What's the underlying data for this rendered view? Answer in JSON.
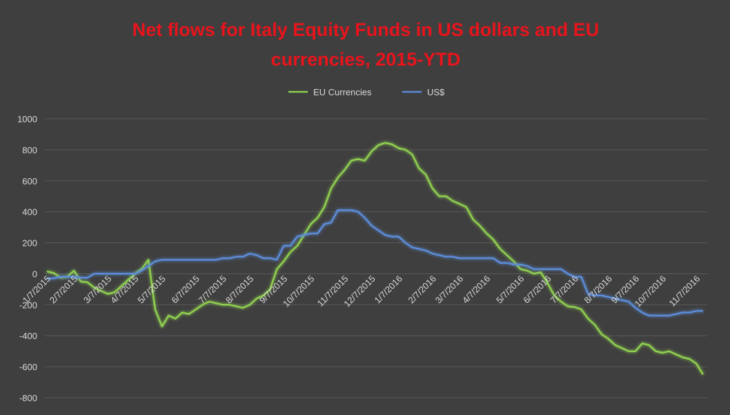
{
  "chart_data": {
    "type": "line",
    "title": "Net flows for Italy Equity Funds in US dollars and EU currencies, 2015-YTD",
    "categories": [
      "1/7/2015",
      null,
      null,
      null,
      "2/7/2015",
      null,
      null,
      null,
      null,
      "3/7/2015",
      null,
      null,
      null,
      "4/7/2015",
      null,
      null,
      null,
      "5/7/2015",
      null,
      null,
      null,
      null,
      "6/7/2015",
      null,
      null,
      null,
      "7/7/2015",
      null,
      null,
      null,
      "8/7/2015",
      null,
      null,
      null,
      null,
      "9/7/2015",
      null,
      null,
      null,
      "10/7/2015",
      null,
      null,
      null,
      null,
      "11/7/2015",
      null,
      null,
      null,
      "12/7/2015",
      null,
      null,
      null,
      "1/7/2016",
      null,
      null,
      null,
      null,
      "2/7/2016",
      null,
      null,
      null,
      "3/7/2016",
      null,
      null,
      null,
      "4/7/2016",
      null,
      null,
      null,
      null,
      "5/7/2016",
      null,
      null,
      null,
      "6/7/2016",
      null,
      null,
      null,
      "7/7/2016",
      null,
      null,
      null,
      null,
      "8/7/2016",
      null,
      null,
      null,
      "9/7/2016",
      null,
      null,
      null,
      "10/7/2016",
      null,
      null,
      null,
      null,
      "11/7/2016",
      null
    ],
    "series": [
      {
        "name": "EU Currencies",
        "color": "#8fcf4f",
        "values": [
          15,
          5,
          -25,
          -20,
          20,
          -50,
          -55,
          -90,
          -110,
          -130,
          -120,
          -80,
          -40,
          0,
          30,
          90,
          -230,
          -340,
          -270,
          -290,
          -250,
          -260,
          -230,
          -200,
          -180,
          -190,
          -200,
          -200,
          -210,
          -220,
          -200,
          -160,
          -140,
          -100,
          30,
          80,
          140,
          180,
          250,
          320,
          360,
          430,
          550,
          620,
          670,
          730,
          740,
          730,
          790,
          830,
          845,
          835,
          810,
          800,
          770,
          680,
          640,
          550,
          500,
          500,
          470,
          450,
          430,
          350,
          310,
          260,
          220,
          160,
          120,
          80,
          30,
          20,
          0,
          10,
          -60,
          -140,
          -180,
          -210,
          -215,
          -230,
          -290,
          -330,
          -390,
          -420,
          -460,
          -480,
          -500,
          -500,
          -450,
          -460,
          -500,
          -510,
          -500,
          -520,
          -540,
          -550,
          -580,
          -650
        ]
      },
      {
        "name": "US$",
        "color": "#5b8cd8",
        "values": [
          -30,
          -30,
          -20,
          -20,
          -20,
          -25,
          -25,
          0,
          0,
          0,
          0,
          0,
          0,
          0,
          20,
          50,
          80,
          90,
          90,
          90,
          90,
          90,
          90,
          90,
          90,
          90,
          100,
          100,
          110,
          110,
          130,
          120,
          100,
          100,
          90,
          180,
          180,
          240,
          250,
          260,
          260,
          320,
          330,
          410,
          410,
          410,
          400,
          360,
          310,
          280,
          250,
          240,
          240,
          200,
          170,
          160,
          150,
          130,
          120,
          110,
          110,
          100,
          100,
          100,
          100,
          100,
          100,
          70,
          70,
          60,
          60,
          50,
          30,
          30,
          30,
          30,
          30,
          0,
          -20,
          -20,
          -130,
          -140,
          -140,
          -150,
          -160,
          -170,
          -180,
          -220,
          -250,
          -270,
          -270,
          -270,
          -270,
          -260,
          -250,
          -250,
          -240,
          -240
        ]
      }
    ],
    "ylim": [
      -800,
      1000
    ],
    "yticks": [
      -800,
      -600,
      -400,
      -200,
      0,
      200,
      400,
      600,
      800,
      1000
    ],
    "grid": true,
    "legend": "top"
  }
}
